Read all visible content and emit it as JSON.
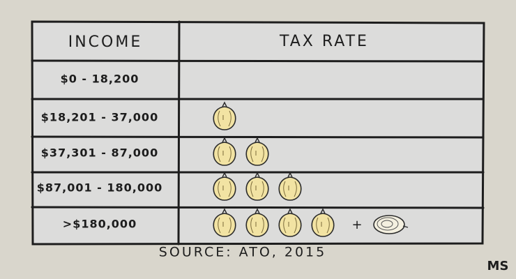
{
  "table": {
    "headers": [
      "INCOME",
      "TAX RATE"
    ],
    "rows": [
      {
        "income": "$0 - 18,200",
        "whole_onions": 0,
        "halved_onions": 0
      },
      {
        "income": "$18,201 - 37,000",
        "whole_onions": 1,
        "halved_onions": 0
      },
      {
        "income": "$37,301 - 87,000",
        "whole_onions": 2,
        "halved_onions": 0
      },
      {
        "income": "$87,001 - 180,000",
        "whole_onions": 3,
        "halved_onions": 0
      },
      {
        "income": ">$180,000",
        "whole_onions": 4,
        "joiner": "+",
        "halved_onions": 1
      }
    ]
  },
  "source": "SOURCE: ATO, 2015",
  "logo": "MS"
}
